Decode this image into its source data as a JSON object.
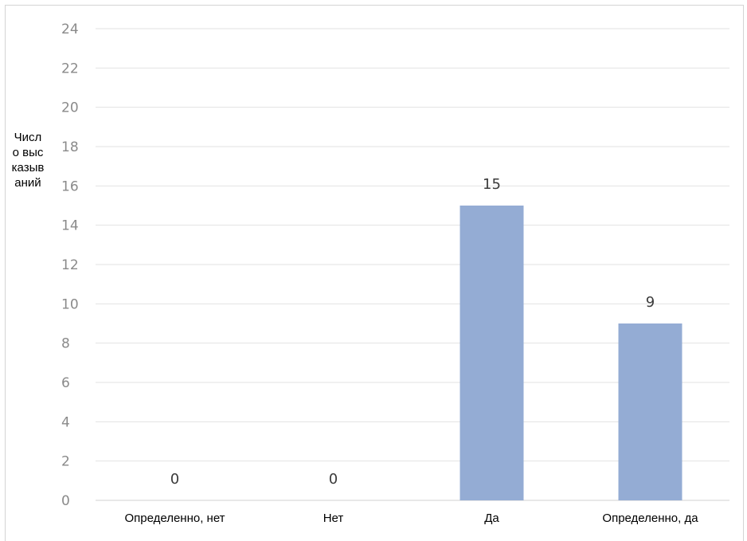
{
  "chart_data": {
    "type": "bar",
    "categories": [
      "Определенно, нет",
      "Нет",
      "Да",
      "Определенно, да"
    ],
    "values": [
      0,
      0,
      15,
      9
    ],
    "data_labels": [
      "0",
      "0",
      "15",
      "9"
    ],
    "title": "",
    "xlabel": "",
    "ylabel": "Число высказываний",
    "ylim": [
      0,
      24
    ],
    "yticks": [
      0,
      2,
      4,
      6,
      8,
      10,
      12,
      14,
      16,
      18,
      20,
      22,
      24
    ],
    "grid": true,
    "legend": "none",
    "bar_color": "#94acd4"
  }
}
